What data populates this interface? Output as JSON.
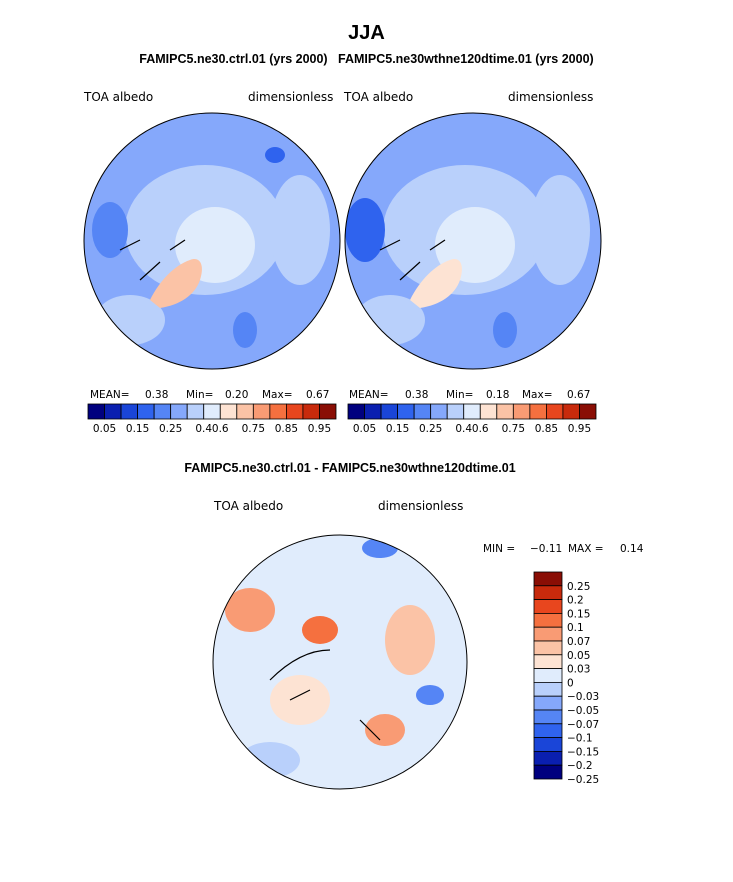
{
  "page_title": "JJA",
  "runs_title_left": "FAMIPC5.ne30.ctrl.01 (yrs 2000)",
  "runs_title_right": "FAMIPC5.ne30wthne120dtime.01 (yrs 2000)",
  "colors": {
    "abs_scale": [
      "#00007f",
      "#0a1fb0",
      "#1a45d8",
      "#2f63ee",
      "#5585f5",
      "#85a8fb",
      "#b9d0fb",
      "#e0ecfc",
      "#fde3d3",
      "#fbc3a6",
      "#f99b74",
      "#f5703f",
      "#e8461e",
      "#c82a0c",
      "#8a0e05"
    ],
    "diff_scale": [
      "#00007f",
      "#0a1fb0",
      "#1a45d8",
      "#2f63ee",
      "#5585f5",
      "#85a8fb",
      "#b9d0fb",
      "#e0ecfc",
      "#fde3d3",
      "#fbc3a6",
      "#f99b74",
      "#f5703f",
      "#e8461e",
      "#c82a0c",
      "#8a0e05"
    ]
  },
  "chart_data": [
    {
      "type": "heatmap",
      "projection": "polar-stereographic-north",
      "title": "FAMIPC5.ne30.ctrl.01 (yrs 2000)",
      "variable": "TOA albedo",
      "units": "dimensionless",
      "stats": {
        "mean_label": "MEAN=",
        "mean": "0.38",
        "min_label": "Min=",
        "min": "0.20",
        "max_label": "Max=",
        "max": "0.67"
      },
      "colorbar_levels": [
        "0.05",
        "0.15",
        "0.25",
        "0.4",
        "0.6",
        "0.75",
        "0.85",
        "0.95"
      ],
      "colorbar_range": [
        0.0,
        1.0
      ]
    },
    {
      "type": "heatmap",
      "projection": "polar-stereographic-north",
      "title": "FAMIPC5.ne30wthne120dtime.01 (yrs 2000)",
      "variable": "TOA albedo",
      "units": "dimensionless",
      "stats": {
        "mean_label": "MEAN=",
        "mean": "0.38",
        "min_label": "Min=",
        "min": "0.18",
        "max_label": "Max=",
        "max": "0.67"
      },
      "colorbar_levels": [
        "0.05",
        "0.15",
        "0.25",
        "0.4",
        "0.6",
        "0.75",
        "0.85",
        "0.95"
      ],
      "colorbar_range": [
        0.0,
        1.0
      ]
    },
    {
      "type": "heatmap",
      "projection": "polar-stereographic-north",
      "title": "FAMIPC5.ne30.ctrl.01 - FAMIPC5.ne30wthne120dtime.01",
      "variable": "TOA albedo",
      "units": "dimensionless",
      "stats": {
        "min_label": "MIN =",
        "min": "−0.11",
        "max_label": "MAX =",
        "max": "0.14"
      },
      "colorbar_levels": [
        "0.25",
        "0.2",
        "0.15",
        "0.1",
        "0.07",
        "0.05",
        "0.03",
        "0",
        "−0.03",
        "−0.05",
        "−0.07",
        "−0.1",
        "−0.15",
        "−0.2",
        "−0.25"
      ],
      "colorbar_range": [
        -0.3,
        0.3
      ]
    }
  ]
}
